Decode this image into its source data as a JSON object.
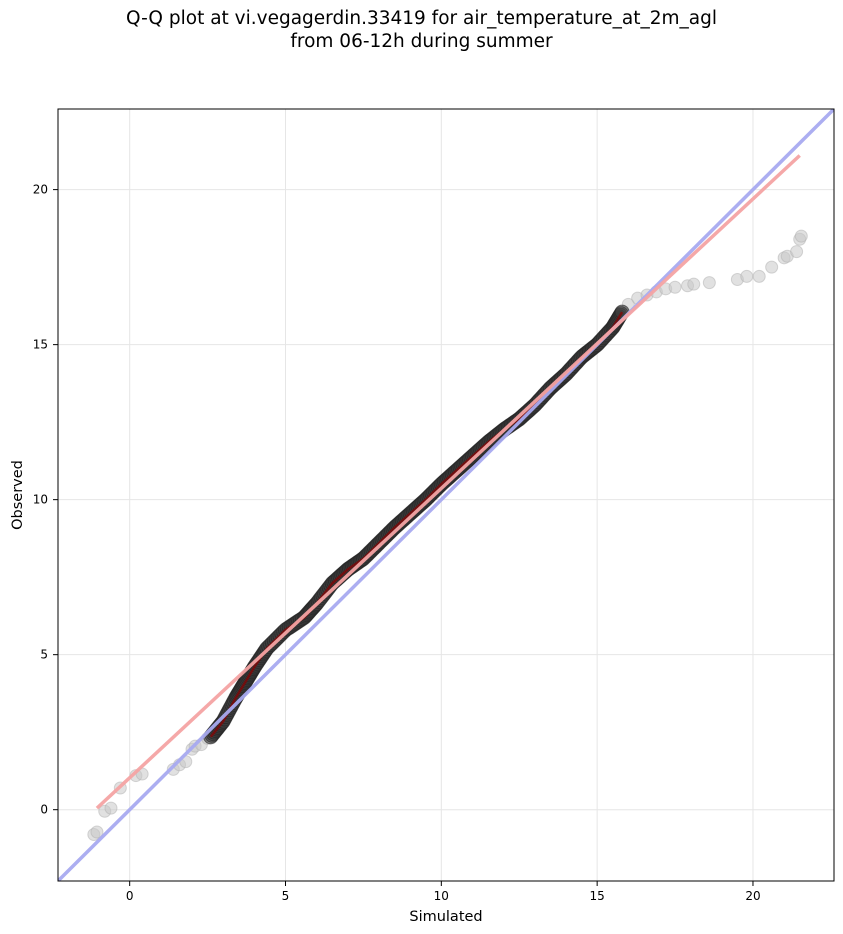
{
  "chart_data": {
    "type": "scatter",
    "title_lines": [
      "Q-Q plot at vi.vegagerdin.33419 for air_temperature_at_2m_agl",
      "from 06-12h during summer"
    ],
    "xlabel": "Simulated",
    "ylabel": "Observed",
    "xlim": [
      -2.3,
      22.6
    ],
    "ylim": [
      -2.3,
      22.6
    ],
    "xticks": [
      0,
      5,
      10,
      15,
      20
    ],
    "yticks": [
      0,
      5,
      10,
      15,
      20
    ],
    "x_tick_labels": [
      "0",
      "5",
      "10",
      "15",
      "20"
    ],
    "y_tick_labels": [
      "0",
      "5",
      "10",
      "15",
      "20"
    ],
    "grid": true,
    "tail_points": [
      [
        -1.15,
        -0.8
      ],
      [
        -1.05,
        -0.72
      ],
      [
        -0.8,
        -0.05
      ],
      [
        -0.6,
        0.05
      ],
      [
        -0.3,
        0.7
      ],
      [
        0.2,
        1.1
      ],
      [
        0.4,
        1.15
      ],
      [
        1.4,
        1.3
      ],
      [
        1.6,
        1.45
      ],
      [
        1.8,
        1.55
      ],
      [
        2.0,
        1.95
      ],
      [
        2.1,
        2.05
      ],
      [
        2.3,
        2.1
      ],
      [
        2.5,
        2.3
      ],
      [
        16.0,
        16.3
      ],
      [
        16.3,
        16.5
      ],
      [
        16.6,
        16.6
      ],
      [
        16.9,
        16.7
      ],
      [
        17.2,
        16.8
      ],
      [
        17.5,
        16.85
      ],
      [
        17.9,
        16.9
      ],
      [
        18.1,
        16.95
      ],
      [
        18.6,
        17.0
      ],
      [
        19.5,
        17.1
      ],
      [
        19.8,
        17.2
      ],
      [
        20.2,
        17.2
      ],
      [
        20.6,
        17.5
      ],
      [
        21.0,
        17.8
      ],
      [
        21.1,
        17.85
      ],
      [
        21.4,
        18.0
      ],
      [
        21.5,
        18.4
      ],
      [
        21.55,
        18.5
      ]
    ],
    "quantile_curve": [
      [
        2.6,
        2.35
      ],
      [
        3.0,
        2.85
      ],
      [
        3.4,
        3.6
      ],
      [
        3.7,
        4.1
      ],
      [
        4.0,
        4.6
      ],
      [
        4.4,
        5.2
      ],
      [
        5.0,
        5.8
      ],
      [
        5.6,
        6.2
      ],
      [
        6.0,
        6.65
      ],
      [
        6.5,
        7.3
      ],
      [
        7.0,
        7.75
      ],
      [
        7.5,
        8.1
      ],
      [
        8.0,
        8.6
      ],
      [
        8.5,
        9.1
      ],
      [
        9.0,
        9.55
      ],
      [
        9.5,
        10.0
      ],
      [
        10.0,
        10.5
      ],
      [
        10.5,
        10.95
      ],
      [
        11.0,
        11.4
      ],
      [
        11.5,
        11.85
      ],
      [
        12.0,
        12.25
      ],
      [
        12.5,
        12.6
      ],
      [
        13.0,
        13.05
      ],
      [
        13.5,
        13.6
      ],
      [
        14.0,
        14.05
      ],
      [
        14.5,
        14.6
      ],
      [
        15.0,
        15.0
      ],
      [
        15.5,
        15.55
      ],
      [
        15.8,
        16.05
      ]
    ],
    "fit_line": {
      "color": "#f4a3a3",
      "x": [
        -1.05,
        21.5
      ],
      "y": [
        0.05,
        21.1
      ]
    },
    "reference_line": {
      "color": "#a8aaf0",
      "x": [
        -2.3,
        22.6
      ],
      "y": [
        -2.3,
        22.6
      ]
    },
    "colors": {
      "points": "#3a3a3a",
      "tail_points": "#c8c8c8",
      "curve_red": "#8b0000",
      "curve_blue": "#00008b"
    }
  }
}
